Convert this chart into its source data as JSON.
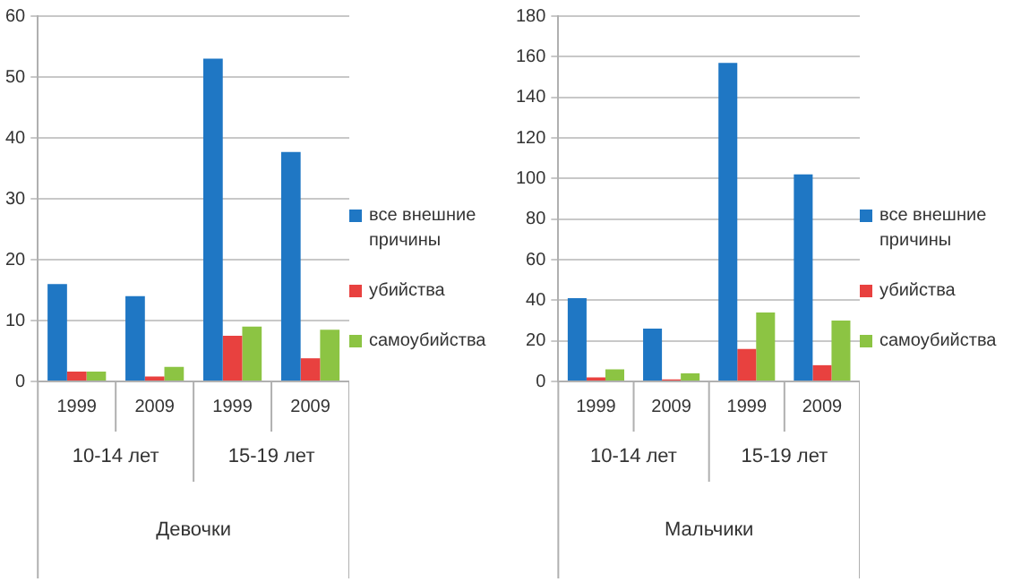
{
  "chart_data": [
    {
      "type": "bar",
      "xlabel": "Девочки",
      "categories": [
        "1999",
        "2009",
        "1999",
        "2009"
      ],
      "annotations": [
        "10-14 лет",
        "15-19 лет"
      ],
      "series": [
        {
          "name": "все внешние причины",
          "color": "#1f77c4",
          "values": [
            16,
            14,
            53,
            37.7
          ]
        },
        {
          "name": "убийства",
          "color": "#e8413f",
          "values": [
            1.6,
            0.8,
            7.5,
            3.8
          ]
        },
        {
          "name": "самоубийства",
          "color": "#8cc443",
          "values": [
            1.6,
            2.4,
            9,
            8.5
          ]
        }
      ],
      "ylim": [
        0,
        60
      ],
      "yticks": [
        0,
        10,
        20,
        30,
        40,
        50,
        60
      ],
      "grid": "y",
      "legend": "right"
    },
    {
      "type": "bar",
      "xlabel": "Мальчики",
      "categories": [
        "1999",
        "2009",
        "1999",
        "2009"
      ],
      "annotations": [
        "10-14 лет",
        "15-19 лет"
      ],
      "series": [
        {
          "name": "все внешние причины",
          "color": "#1f77c4",
          "values": [
            41,
            26,
            157,
            102
          ]
        },
        {
          "name": "убийства",
          "color": "#e8413f",
          "values": [
            2,
            1,
            16,
            8
          ]
        },
        {
          "name": "самоубийства",
          "color": "#8cc443",
          "values": [
            6,
            4,
            34,
            30
          ]
        }
      ],
      "ylim": [
        0,
        180
      ],
      "yticks": [
        0,
        20,
        40,
        60,
        80,
        100,
        120,
        140,
        160,
        180
      ],
      "grid": "y",
      "legend": "right"
    }
  ]
}
